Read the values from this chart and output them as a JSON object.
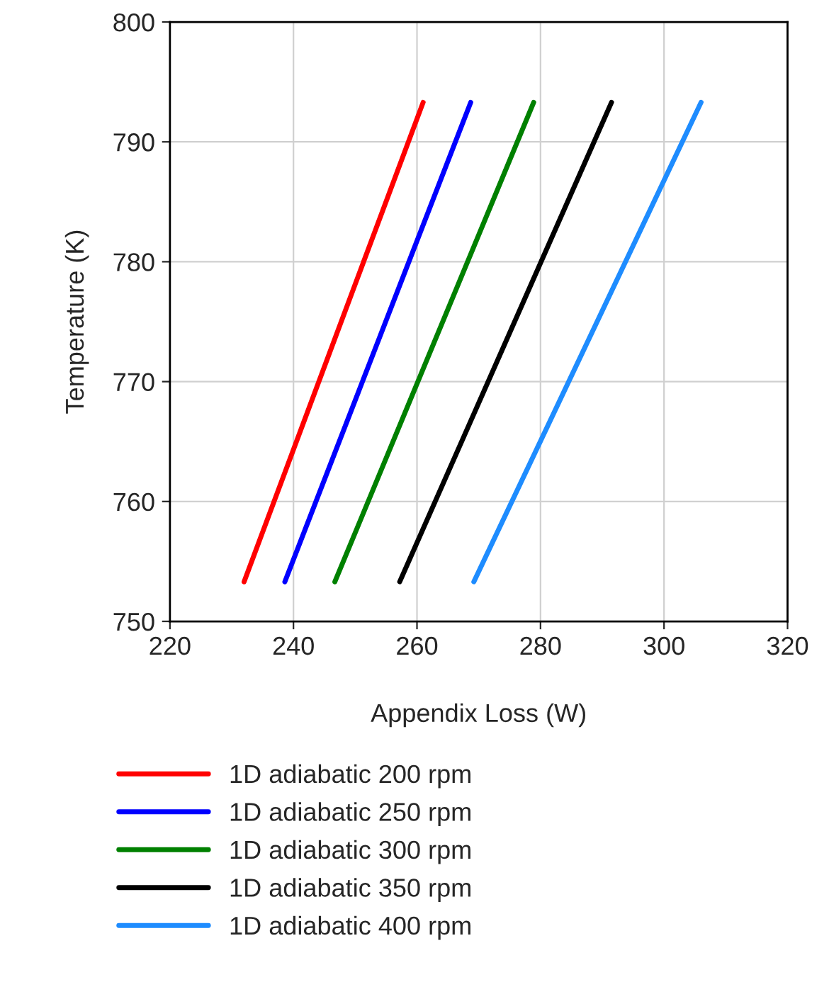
{
  "chart_data": {
    "type": "line",
    "xlabel": "Appendix Loss (W)",
    "ylabel": "Temperature (K)",
    "xlim": [
      220,
      320
    ],
    "xticks": [
      220,
      240,
      260,
      280,
      300,
      320
    ],
    "ylim": [
      750,
      800
    ],
    "yticks": [
      750,
      760,
      770,
      780,
      790,
      800
    ],
    "grid": true,
    "legend": "bottom",
    "marker": "none",
    "line_style": "solid",
    "series": [
      {
        "name": "1D adiabatic 200 rpm",
        "color": "#ff0000",
        "x": [
          232.0,
          261.0
        ],
        "values": [
          753.3,
          793.3
        ]
      },
      {
        "name": "1D adiabatic 250 rpm",
        "color": "#0000ff",
        "x": [
          238.6,
          268.7
        ],
        "values": [
          753.3,
          793.3
        ]
      },
      {
        "name": "1D adiabatic 300 rpm",
        "color": "#008000",
        "x": [
          246.7,
          278.9
        ],
        "values": [
          753.3,
          793.3
        ]
      },
      {
        "name": "1D adiabatic 350 rpm",
        "color": "#000000",
        "x": [
          257.2,
          291.5
        ],
        "values": [
          753.3,
          793.3
        ]
      },
      {
        "name": "1D adiabatic 400 rpm",
        "color": "#1e8cff",
        "x": [
          269.2,
          306.0
        ],
        "values": [
          753.3,
          793.3
        ]
      }
    ]
  }
}
